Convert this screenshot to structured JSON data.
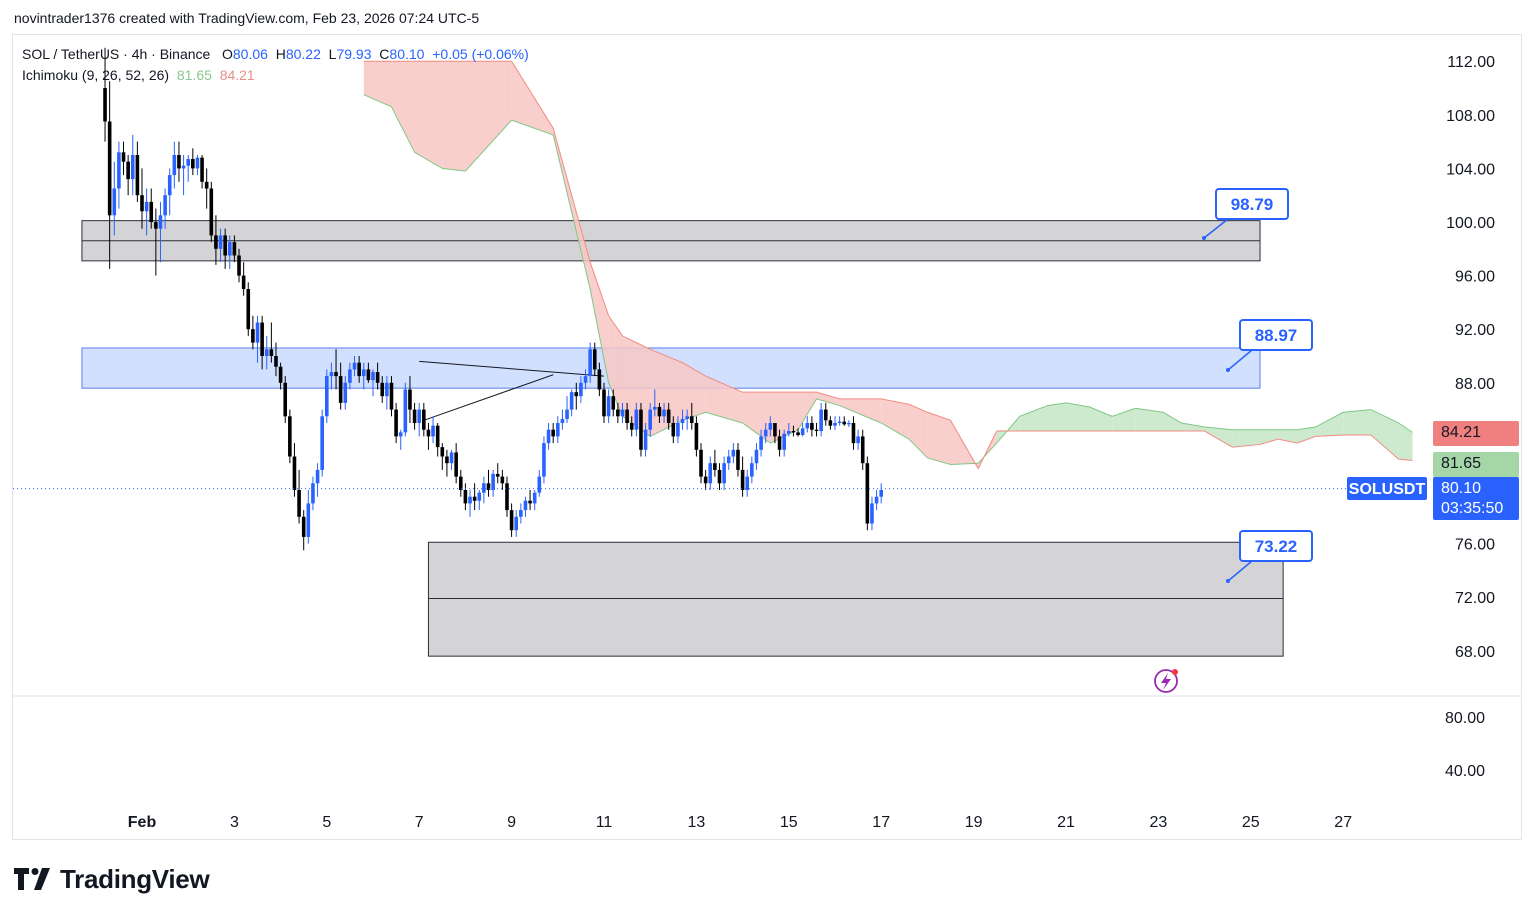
{
  "header": {
    "credit": "novintrader1376 created with TradingView.com, Feb 23, 2026 07:24 UTC-5"
  },
  "legend": {
    "symbol": "SOL / TetherUS · 4h · Binance",
    "o_label": "O",
    "o_value": "80.06",
    "h_label": "H",
    "h_value": "80.22",
    "l_label": "L",
    "l_value": "79.93",
    "c_label": "C",
    "c_value": "80.10",
    "change": "+0.05 (+0.06%)",
    "indicator": "Ichimoku (9, 26, 52, 26)",
    "ind_value_1": "81.65",
    "ind_value_2": "84.21"
  },
  "badges": {
    "ticker": "SOLUSDT",
    "last_price": "80.10",
    "countdown": "03:35:50",
    "span_b": "84.21",
    "span_a": "81.65"
  },
  "callouts": [
    "98.79",
    "88.97",
    "73.22"
  ],
  "brand": {
    "name": "TradingView"
  },
  "colors": {
    "up": "#2962ff",
    "down": "#000000",
    "cloud_bear": "#f8c7c4",
    "cloud_bull": "#c5e6c6",
    "zone_gray": "#d4d4d6",
    "zone_blue": "#d2e0ff",
    "accent": "#2962ff",
    "red_badge": "#f08080",
    "green_badge": "#a5d6a7"
  },
  "chart_data": {
    "type": "candlestick",
    "title": "SOL / TetherUS · 4h · Binance",
    "x_labels": [
      "Feb",
      "3",
      "5",
      "7",
      "9",
      "11",
      "13",
      "15",
      "17",
      "19",
      "21",
      "23",
      "25",
      "27"
    ],
    "price_axis": [
      "112.00",
      "108.00",
      "104.00",
      "100.00",
      "96.00",
      "92.00",
      "88.00",
      "76.00",
      "72.00",
      "68.00"
    ],
    "volume_axis": [
      "80.00",
      "40.00"
    ],
    "ylim": [
      66.5,
      114.0
    ],
    "zones": [
      {
        "name": "upper-gray-zone",
        "from_day": -1.3,
        "to_day": 24.2,
        "low": 97.1,
        "high": 100.1,
        "mid": 98.6,
        "color": "gray"
      },
      {
        "name": "blue-zone",
        "from_day": -1.3,
        "to_day": 24.2,
        "low": 87.6,
        "high": 90.6,
        "color": "blue"
      },
      {
        "name": "lower-gray-zone",
        "from_day": 6.2,
        "to_day": 24.7,
        "low": 67.6,
        "high": 76.1,
        "mid": 71.9,
        "color": "gray"
      }
    ],
    "cloud": {
      "days": [
        4.8,
        5.4,
        5.9,
        6.5,
        7.0,
        8.0,
        8.9,
        9.7,
        10.1,
        10.4,
        11.0,
        11.7,
        12.2,
        13.0,
        13.6,
        14.2,
        14.6,
        15.1,
        16.0,
        16.6,
        17.0,
        17.5,
        18.1,
        18.5,
        19.0,
        19.6,
        20.0,
        20.5,
        21.0,
        21.5,
        22.1,
        22.5,
        23.0,
        23.6,
        24.2,
        24.6,
        25.0,
        25.4,
        26.0,
        26.6,
        27.2,
        27.5
      ],
      "span_a": [
        109.5,
        108.6,
        105.2,
        104.0,
        103.8,
        107.6,
        106.5,
        95.0,
        88.0,
        85.5,
        84.0,
        85.2,
        85.8,
        85.0,
        83.5,
        84.5,
        86.8,
        86.3,
        85.0,
        83.8,
        82.4,
        81.9,
        82.0,
        83.5,
        85.5,
        86.3,
        86.5,
        86.2,
        85.5,
        86.1,
        85.8,
        85.0,
        84.7,
        84.5,
        84.5,
        84.5,
        84.5,
        84.7,
        85.8,
        86.0,
        85.0,
        84.3
      ],
      "span_b": [
        112.0,
        112.0,
        112.0,
        112.0,
        112.0,
        112.0,
        107.0,
        97.0,
        93.0,
        91.5,
        90.5,
        89.5,
        88.5,
        87.3,
        87.3,
        87.3,
        87.3,
        86.8,
        86.8,
        86.4,
        85.8,
        85.2,
        81.6,
        84.4,
        84.4,
        84.4,
        84.4,
        84.4,
        84.4,
        84.4,
        84.4,
        84.4,
        84.4,
        83.2,
        83.4,
        83.8,
        83.5,
        84.0,
        84.1,
        84.1,
        82.3,
        82.2
      ]
    },
    "triangle": {
      "upper": [
        [
          6.0,
          89.6
        ],
        [
          10.0,
          88.5
        ]
      ],
      "lower": [
        [
          6.1,
          85.2
        ],
        [
          8.9,
          88.6
        ]
      ]
    },
    "candles": [
      [
        -0.8,
        110.0,
        113.0,
        106.0,
        107.5
      ],
      [
        -0.7,
        107.5,
        110.5,
        96.5,
        100.5
      ],
      [
        -0.6,
        100.5,
        104.5,
        99.0,
        102.5
      ],
      [
        -0.5,
        102.5,
        106.0,
        101.0,
        105.2
      ],
      [
        -0.4,
        105.2,
        106.0,
        103.5,
        104.5
      ],
      [
        -0.3,
        104.5,
        105.0,
        102.0,
        103.2
      ],
      [
        -0.2,
        103.2,
        106.5,
        102.0,
        105.0
      ],
      [
        -0.1,
        105.0,
        106.0,
        101.5,
        102.0
      ],
      [
        0.0,
        102.0,
        104.0,
        99.5,
        100.8
      ],
      [
        0.1,
        100.8,
        102.5,
        99.0,
        101.5
      ],
      [
        0.2,
        101.5,
        102.5,
        99.5,
        100.0
      ],
      [
        0.3,
        100.0,
        101.0,
        96.0,
        99.5
      ],
      [
        0.4,
        99.5,
        101.5,
        97.0,
        100.5
      ],
      [
        0.5,
        100.5,
        102.5,
        99.5,
        102.0
      ],
      [
        0.6,
        102.0,
        104.0,
        100.5,
        103.5
      ],
      [
        0.7,
        103.5,
        106.0,
        102.5,
        105.0
      ],
      [
        0.8,
        105.0,
        106.0,
        103.0,
        104.0
      ],
      [
        0.9,
        104.0,
        105.0,
        102.0,
        104.2
      ],
      [
        1.0,
        104.2,
        105.0,
        103.0,
        104.7
      ],
      [
        1.1,
        104.7,
        105.5,
        103.5,
        104.0
      ],
      [
        1.2,
        104.0,
        105.0,
        103.5,
        104.8
      ],
      [
        1.3,
        104.8,
        105.0,
        102.5,
        103.0
      ],
      [
        1.4,
        103.0,
        104.0,
        101.0,
        102.5
      ],
      [
        1.5,
        102.5,
        103.0,
        98.5,
        99.0
      ],
      [
        1.6,
        99.0,
        100.5,
        96.8,
        98.0
      ],
      [
        1.7,
        98.0,
        99.5,
        97.0,
        99.0
      ],
      [
        1.8,
        99.0,
        99.5,
        96.5,
        97.5
      ],
      [
        1.9,
        97.5,
        99.0,
        96.5,
        98.5
      ],
      [
        2.0,
        98.5,
        99.0,
        97.0,
        97.5
      ],
      [
        2.1,
        97.5,
        98.0,
        95.5,
        96.0
      ],
      [
        2.2,
        96.0,
        97.0,
        94.5,
        95.0
      ],
      [
        2.3,
        95.0,
        95.5,
        91.5,
        92.0
      ],
      [
        2.4,
        92.0,
        93.0,
        90.5,
        91.0
      ],
      [
        2.5,
        91.0,
        93.0,
        89.5,
        92.5
      ],
      [
        2.6,
        92.5,
        93.0,
        89.0,
        90.0
      ],
      [
        2.7,
        90.0,
        91.5,
        89.0,
        90.5
      ],
      [
        2.8,
        90.5,
        92.5,
        89.5,
        90.0
      ],
      [
        2.9,
        90.0,
        91.0,
        88.5,
        89.2
      ],
      [
        3.0,
        89.2,
        89.5,
        87.5,
        88.0
      ],
      [
        3.1,
        88.0,
        88.5,
        85.0,
        85.5
      ],
      [
        3.2,
        85.5,
        86.0,
        82.0,
        82.5
      ],
      [
        3.3,
        82.5,
        83.5,
        79.5,
        80.0
      ],
      [
        3.4,
        80.0,
        81.5,
        77.5,
        78.0
      ],
      [
        3.5,
        78.0,
        78.5,
        75.5,
        76.5
      ],
      [
        3.6,
        76.5,
        80.0,
        76.0,
        79.0
      ],
      [
        3.7,
        79.0,
        81.0,
        78.5,
        80.5
      ],
      [
        3.8,
        80.5,
        82.0,
        79.5,
        81.5
      ],
      [
        3.9,
        81.5,
        86.0,
        81.0,
        85.5
      ],
      [
        4.0,
        85.5,
        89.0,
        85.0,
        88.5
      ],
      [
        4.1,
        88.5,
        89.5,
        87.5,
        88.8
      ],
      [
        4.2,
        88.8,
        90.5,
        87.5,
        88.5
      ],
      [
        4.3,
        88.5,
        89.5,
        86.0,
        86.5
      ],
      [
        4.4,
        86.5,
        88.5,
        86.0,
        88.0
      ],
      [
        4.5,
        88.0,
        89.5,
        87.5,
        89.0
      ],
      [
        4.6,
        89.0,
        90.0,
        88.5,
        89.5
      ],
      [
        4.7,
        89.5,
        90.0,
        88.0,
        88.5
      ],
      [
        4.8,
        88.5,
        89.5,
        87.5,
        89.0
      ],
      [
        4.9,
        89.0,
        89.5,
        88.0,
        88.2
      ],
      [
        5.0,
        88.2,
        89.0,
        87.0,
        88.8
      ],
      [
        5.1,
        88.8,
        89.5,
        87.5,
        88.0
      ],
      [
        5.2,
        88.0,
        88.5,
        86.5,
        87.0
      ],
      [
        5.3,
        87.0,
        88.5,
        86.0,
        88.0
      ],
      [
        5.4,
        88.0,
        88.5,
        85.5,
        86.0
      ],
      [
        5.5,
        86.0,
        86.5,
        83.5,
        84.0
      ],
      [
        5.6,
        84.0,
        84.5,
        83.0,
        84.3
      ],
      [
        5.7,
        84.3,
        88.0,
        84.0,
        87.5
      ],
      [
        5.8,
        87.5,
        88.5,
        85.0,
        86.0
      ],
      [
        5.9,
        86.0,
        86.5,
        84.5,
        85.0
      ],
      [
        6.0,
        85.0,
        86.5,
        84.0,
        86.0
      ],
      [
        6.1,
        86.0,
        86.5,
        84.0,
        84.5
      ],
      [
        6.2,
        84.5,
        85.0,
        83.0,
        84.0
      ],
      [
        6.3,
        84.0,
        85.5,
        83.5,
        84.8
      ],
      [
        6.4,
        84.8,
        85.0,
        82.5,
        83.2
      ],
      [
        6.5,
        83.2,
        83.5,
        81.5,
        82.5
      ],
      [
        6.6,
        82.5,
        83.0,
        81.0,
        82.0
      ],
      [
        6.7,
        82.0,
        83.0,
        81.5,
        82.8
      ],
      [
        6.8,
        82.8,
        83.5,
        80.5,
        81.0
      ],
      [
        6.9,
        81.0,
        81.5,
        79.5,
        80.0
      ],
      [
        7.0,
        80.0,
        80.5,
        78.5,
        79.0
      ],
      [
        7.1,
        79.0,
        80.0,
        78.0,
        79.5
      ],
      [
        7.2,
        79.5,
        80.5,
        78.5,
        79.2
      ],
      [
        7.3,
        79.2,
        80.0,
        78.5,
        79.8
      ],
      [
        7.4,
        79.8,
        81.0,
        79.0,
        80.5
      ],
      [
        7.5,
        80.5,
        81.5,
        79.5,
        80.0
      ],
      [
        7.6,
        80.0,
        81.5,
        79.5,
        81.2
      ],
      [
        7.7,
        81.2,
        82.0,
        80.5,
        81.0
      ],
      [
        7.8,
        81.0,
        81.5,
        80.0,
        80.5
      ],
      [
        7.9,
        80.5,
        81.0,
        78.0,
        78.5
      ],
      [
        8.0,
        78.5,
        79.0,
        76.5,
        77.0
      ],
      [
        8.1,
        77.0,
        78.5,
        76.5,
        78.0
      ],
      [
        8.2,
        78.0,
        79.0,
        77.5,
        78.5
      ],
      [
        8.3,
        78.5,
        79.5,
        78.0,
        79.2
      ],
      [
        8.4,
        79.2,
        80.0,
        78.5,
        79.0
      ],
      [
        8.5,
        79.0,
        80.0,
        78.5,
        79.8
      ],
      [
        8.6,
        79.8,
        81.5,
        79.5,
        81.0
      ],
      [
        8.7,
        81.0,
        84.0,
        80.5,
        83.5
      ],
      [
        8.8,
        83.5,
        85.0,
        83.0,
        84.5
      ],
      [
        8.9,
        84.5,
        85.0,
        83.5,
        84.0
      ],
      [
        9.0,
        84.0,
        85.5,
        83.5,
        85.0
      ],
      [
        9.1,
        85.0,
        86.0,
        84.5,
        85.3
      ],
      [
        9.2,
        85.3,
        87.0,
        85.0,
        86.0
      ],
      [
        9.3,
        86.0,
        87.5,
        85.5,
        87.3
      ],
      [
        9.4,
        87.3,
        88.0,
        86.0,
        87.0
      ],
      [
        9.5,
        87.0,
        88.5,
        86.5,
        88.0
      ],
      [
        9.6,
        88.0,
        89.0,
        87.5,
        88.5
      ],
      [
        9.7,
        88.5,
        91.0,
        88.0,
        90.5
      ],
      [
        9.8,
        90.5,
        91.0,
        88.5,
        89.0
      ],
      [
        9.9,
        89.0,
        89.5,
        87.0,
        87.5
      ],
      [
        10.0,
        87.5,
        88.0,
        85.0,
        85.5
      ],
      [
        10.1,
        85.5,
        87.5,
        85.0,
        87.0
      ],
      [
        10.2,
        87.0,
        87.5,
        85.5,
        86.0
      ],
      [
        10.3,
        86.0,
        86.5,
        85.0,
        85.5
      ],
      [
        10.4,
        85.5,
        86.5,
        85.0,
        86.0
      ],
      [
        10.5,
        86.0,
        86.5,
        84.5,
        85.0
      ],
      [
        10.6,
        85.0,
        85.5,
        84.0,
        84.5
      ],
      [
        10.7,
        84.5,
        86.5,
        84.0,
        86.0
      ],
      [
        10.8,
        86.0,
        86.5,
        82.5,
        83.0
      ],
      [
        10.9,
        83.0,
        85.0,
        82.5,
        84.5
      ],
      [
        11.0,
        84.5,
        86.5,
        84.0,
        86.0
      ],
      [
        11.1,
        86.0,
        87.5,
        85.5,
        86.2
      ],
      [
        11.2,
        86.2,
        86.5,
        85.0,
        85.5
      ],
      [
        11.3,
        85.5,
        86.5,
        85.0,
        86.0
      ],
      [
        11.4,
        86.0,
        86.5,
        84.5,
        85.0
      ],
      [
        11.5,
        85.0,
        85.5,
        83.5,
        84.0
      ],
      [
        11.6,
        84.0,
        85.5,
        83.5,
        85.0
      ],
      [
        11.7,
        85.0,
        86.0,
        84.5,
        85.3
      ],
      [
        11.8,
        85.3,
        86.0,
        84.5,
        85.5
      ],
      [
        11.9,
        85.5,
        86.5,
        84.5,
        85.0
      ],
      [
        12.0,
        85.0,
        85.5,
        82.5,
        83.0
      ],
      [
        12.1,
        83.0,
        83.5,
        80.5,
        81.0
      ],
      [
        12.2,
        81.0,
        81.5,
        80.0,
        80.5
      ],
      [
        12.3,
        80.5,
        82.5,
        80.0,
        82.0
      ],
      [
        12.4,
        82.0,
        83.0,
        81.0,
        81.5
      ],
      [
        12.5,
        81.5,
        82.0,
        80.0,
        80.5
      ],
      [
        12.6,
        80.5,
        82.5,
        80.0,
        82.0
      ],
      [
        12.7,
        82.0,
        83.0,
        81.5,
        82.5
      ],
      [
        12.8,
        82.5,
        83.5,
        82.0,
        83.0
      ],
      [
        12.9,
        83.0,
        83.5,
        81.0,
        81.5
      ],
      [
        13.0,
        81.5,
        82.5,
        79.5,
        80.0
      ],
      [
        13.1,
        80.0,
        81.5,
        79.5,
        81.0
      ],
      [
        13.2,
        81.0,
        82.5,
        80.5,
        82.0
      ],
      [
        13.3,
        82.0,
        83.5,
        81.5,
        83.0
      ],
      [
        13.4,
        83.0,
        84.5,
        82.5,
        84.0
      ],
      [
        13.5,
        84.0,
        85.0,
        83.5,
        84.5
      ],
      [
        13.6,
        84.5,
        85.5,
        84.0,
        85.0
      ],
      [
        13.7,
        85.0,
        85.0,
        83.5,
        84.0
      ],
      [
        13.8,
        84.0,
        84.5,
        82.5,
        83.0
      ],
      [
        13.9,
        83.0,
        84.5,
        82.5,
        84.2
      ],
      [
        14.0,
        84.2,
        85.0,
        84.0,
        84.4
      ],
      [
        14.1,
        84.4,
        84.8,
        84.0,
        84.3
      ],
      [
        14.2,
        84.3,
        84.6,
        84.0,
        84.1
      ],
      [
        14.3,
        84.1,
        85.0,
        84.0,
        84.6
      ],
      [
        14.4,
        84.6,
        85.5,
        84.3,
        85.0
      ],
      [
        14.5,
        85.0,
        85.5,
        84.0,
        84.5
      ],
      [
        14.6,
        84.5,
        85.0,
        84.0,
        84.4
      ],
      [
        14.7,
        84.4,
        86.5,
        84.0,
        86.0
      ],
      [
        14.8,
        86.0,
        86.5,
        84.8,
        85.2
      ],
      [
        14.9,
        85.2,
        85.5,
        84.5,
        84.8
      ],
      [
        15.0,
        84.8,
        85.5,
        84.5,
        85.0
      ],
      [
        15.1,
        85.0,
        85.5,
        84.8,
        85.1
      ],
      [
        15.2,
        85.1,
        85.5,
        84.8,
        84.9
      ],
      [
        15.3,
        84.9,
        85.2,
        84.7,
        85.0
      ],
      [
        15.4,
        85.0,
        85.5,
        83.0,
        83.5
      ],
      [
        15.5,
        83.5,
        84.5,
        83.0,
        84.0
      ],
      [
        15.6,
        84.0,
        84.5,
        81.5,
        82.0
      ],
      [
        15.7,
        82.0,
        82.5,
        77.0,
        77.5
      ],
      [
        15.8,
        77.5,
        79.5,
        77.0,
        79.0
      ],
      [
        15.9,
        79.0,
        80.0,
        78.5,
        79.5
      ],
      [
        16.0,
        79.5,
        80.5,
        79.0,
        80.0
      ]
    ]
  }
}
